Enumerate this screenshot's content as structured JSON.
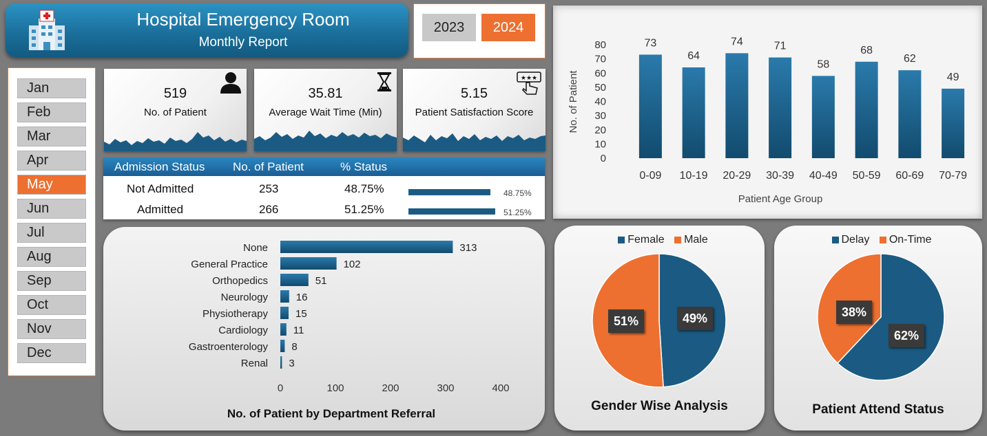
{
  "header": {
    "title": "Hospital Emergency Room",
    "subtitle": "Monthly Report"
  },
  "years": [
    {
      "label": "2023",
      "selected": false
    },
    {
      "label": "2024",
      "selected": true
    }
  ],
  "months": [
    "Jan",
    "Feb",
    "Mar",
    "Apr",
    "May",
    "Jun",
    "Jul",
    "Aug",
    "Sep",
    "Oct",
    "Nov",
    "Dec"
  ],
  "selected_month": "May",
  "kpis": [
    {
      "value": "519",
      "label": "No. of Patient",
      "icon": "person-icon"
    },
    {
      "value": "35.81",
      "label": "Average Wait Time (Min)",
      "icon": "hourglass-icon"
    },
    {
      "value": "5.15",
      "label": "Patient Satisfaction Score",
      "icon": "rating-hand-icon"
    }
  ],
  "admission": {
    "headers": [
      "Admission Status",
      "No. of Patient",
      "% Status"
    ],
    "rows": [
      {
        "status": "Not Admitted",
        "count": "253",
        "percent": "48.75%",
        "fraction": 0.4875
      },
      {
        "status": "Admitted",
        "count": "266",
        "percent": "51.25%",
        "fraction": 0.5125
      }
    ]
  },
  "colors": {
    "primary": "#1b5b83",
    "accent": "#ed7031",
    "grey": "#c9c9c9"
  },
  "chart_data": [
    {
      "type": "bar",
      "categories": [
        "0-09",
        "10-19",
        "20-29",
        "30-39",
        "40-49",
        "50-59",
        "60-69",
        "70-79"
      ],
      "values": [
        73,
        64,
        74,
        71,
        58,
        68,
        62,
        49
      ],
      "xlabel": "Patient Age Group",
      "ylabel": "No. of Patient",
      "ylim": [
        0,
        80
      ],
      "yticks": [
        0,
        10,
        20,
        30,
        40,
        50,
        60,
        70,
        80
      ],
      "grid": false
    },
    {
      "type": "bar",
      "orientation": "horizontal",
      "categories": [
        "None",
        "General Practice",
        "Orthopedics",
        "Neurology",
        "Physiotherapy",
        "Cardiology",
        "Gastroenterology",
        "Renal"
      ],
      "values": [
        313,
        102,
        51,
        16,
        15,
        11,
        8,
        3
      ],
      "title": "No. of Patient by Department Referral",
      "xlim": [
        0,
        400
      ],
      "xticks": [
        0,
        100,
        200,
        300,
        400
      ],
      "grid": false
    },
    {
      "type": "pie",
      "title": "Gender Wise Analysis",
      "labels": [
        "Female",
        "Male"
      ],
      "values": [
        49,
        51
      ],
      "value_labels": [
        "49%",
        "51%"
      ],
      "colors": [
        "#1b5b83",
        "#ed7031"
      ],
      "legend": "top"
    },
    {
      "type": "pie",
      "title": "Patient Attend Status",
      "labels": [
        "Delay",
        "On-Time"
      ],
      "values": [
        62,
        38
      ],
      "value_labels": [
        "62%",
        "38%"
      ],
      "colors": [
        "#1b5b83",
        "#ed7031"
      ],
      "legend": "top"
    }
  ]
}
